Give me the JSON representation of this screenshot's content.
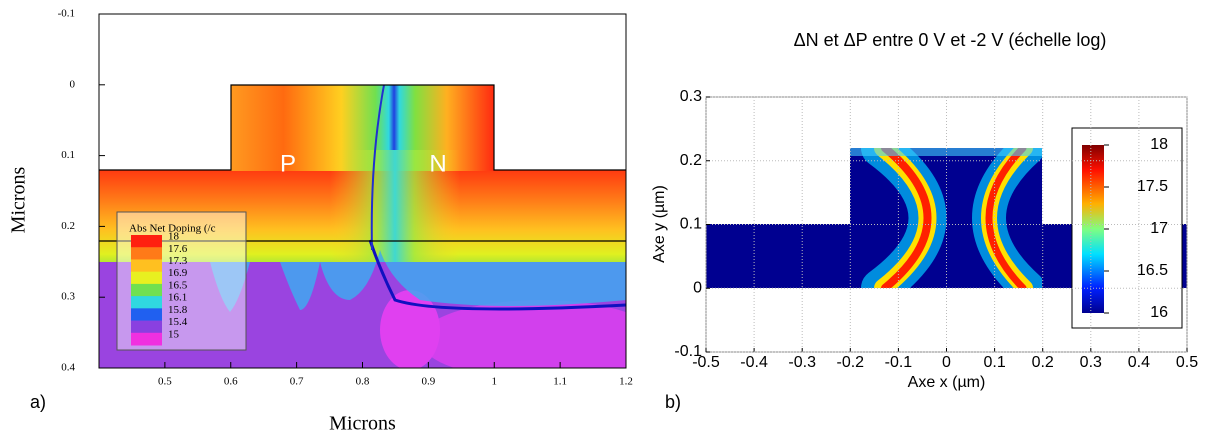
{
  "chart_data": [
    {
      "type": "contour",
      "panel_label": "a)",
      "xlabel": "Microns",
      "ylabel": "Microns",
      "xlim": [
        0.4,
        1.2
      ],
      "xticks": [
        0.5,
        0.6,
        0.7,
        0.8,
        0.9,
        1,
        1.1,
        1.2
      ],
      "ylim": [
        -0.1,
        0.4
      ],
      "yticks": [
        -0.1,
        0,
        0.1,
        0.2,
        0.3,
        0.4
      ],
      "y_inverted": true,
      "annotations": [
        "P",
        "N"
      ],
      "legend": {
        "title": "Abs Net Doping (/c",
        "levels": [
          18,
          17.6,
          17.3,
          16.9,
          16.5,
          16.1,
          15.8,
          15.4,
          15
        ],
        "colors": [
          "#ff2010",
          "#ff7a18",
          "#ffc020",
          "#e8f020",
          "#70e050",
          "#30d8e0",
          "#2060f0",
          "#8a40e0",
          "#f030e0"
        ]
      }
    },
    {
      "type": "heatmap",
      "panel_label": "b)",
      "title": "ΔN et ΔP entre 0 V et -2 V (échelle log)",
      "xlabel": "Axe x (µm)",
      "ylabel": "Axe y (µm)",
      "xlim": [
        -0.5,
        0.5
      ],
      "xticks": [
        -0.5,
        -0.4,
        -0.3,
        -0.2,
        -0.1,
        0,
        0.1,
        0.2,
        0.3,
        0.4,
        0.5
      ],
      "ylim": [
        -0.1,
        0.3
      ],
      "yticks": [
        -0.1,
        0,
        0.1,
        0.2,
        0.3
      ],
      "grid": true,
      "colorbar": {
        "lim": [
          16,
          18
        ],
        "ticks": [
          16,
          16.5,
          17,
          17.5,
          18
        ]
      }
    }
  ]
}
